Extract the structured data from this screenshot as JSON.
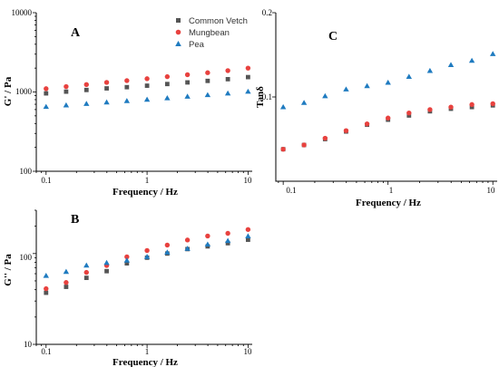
{
  "legend": [
    "Common Vetch",
    "Mungbean",
    "Pea"
  ],
  "colors": {
    "Common Vetch": "#555555",
    "Mungbean": "#e8423f",
    "Pea": "#1f7bc0",
    "axis": "#000000"
  },
  "chart_data": [
    {
      "panel_label": "A",
      "type": "scatter",
      "xscale": "log",
      "yscale": "log",
      "xlabel": "Frequency / Hz",
      "ylabel": "G' / Pa",
      "xlim": [
        0.08,
        11
      ],
      "ylim": [
        100,
        10000
      ],
      "xticks": [
        "0.1",
        "1",
        "10"
      ],
      "yticks": [
        "100",
        "1000",
        "10000"
      ],
      "x": [
        0.1,
        0.158,
        0.251,
        0.398,
        0.631,
        1.0,
        1.585,
        2.512,
        3.981,
        6.31,
        10.0
      ],
      "series": [
        {
          "name": "Common Vetch",
          "marker": "square",
          "values": [
            960,
            1010,
            1060,
            1110,
            1150,
            1200,
            1260,
            1320,
            1380,
            1450,
            1540
          ]
        },
        {
          "name": "Mungbean",
          "marker": "circle",
          "values": [
            1100,
            1170,
            1240,
            1320,
            1390,
            1470,
            1560,
            1650,
            1750,
            1860,
            2000
          ]
        },
        {
          "name": "Pea",
          "marker": "triangle",
          "values": [
            650,
            680,
            710,
            740,
            770,
            800,
            835,
            875,
            915,
            960,
            1010
          ]
        }
      ]
    },
    {
      "panel_label": "B",
      "type": "scatter",
      "xscale": "log",
      "yscale": "log",
      "xlabel": "Frequency / Hz",
      "ylabel": "G'' / Pa",
      "xlim": [
        0.08,
        11
      ],
      "ylim": [
        10,
        300
      ],
      "xticks": [
        "0.1",
        "1",
        "10"
      ],
      "yticks": [
        "10",
        "100"
      ],
      "x": [
        0.1,
        0.158,
        0.251,
        0.398,
        0.631,
        1.0,
        1.585,
        2.512,
        3.981,
        6.31,
        10.0
      ],
      "series": [
        {
          "name": "Common Vetch",
          "marker": "square",
          "values": [
            37,
            43,
            54,
            64,
            78,
            90,
            100,
            112,
            120,
            130,
            142
          ]
        },
        {
          "name": "Mungbean",
          "marker": "circle",
          "values": [
            41,
            48,
            62,
            74,
            92,
            108,
            124,
            141,
            156,
            167,
            184
          ]
        },
        {
          "name": "Pea",
          "marker": "triangle",
          "values": [
            57,
            63,
            74,
            79,
            84,
            92,
            103,
            113,
            126,
            138,
            155
          ]
        }
      ]
    },
    {
      "panel_label": "C",
      "type": "scatter",
      "xscale": "log",
      "yscale": "linear",
      "xlabel": "Frequency / Hz",
      "ylabel": "Tanδ",
      "xlim": [
        0.085,
        11
      ],
      "ylim": [
        0,
        0.2
      ],
      "xticks": [
        "0.1",
        "1",
        "10"
      ],
      "yticks": [
        "0.1",
        "0.2"
      ],
      "x": [
        0.1,
        0.158,
        0.251,
        0.398,
        0.631,
        1.0,
        1.585,
        2.512,
        3.981,
        6.31,
        10.0
      ],
      "series": [
        {
          "name": "Common Vetch",
          "marker": "square",
          "values": [
            0.038,
            0.043,
            0.05,
            0.059,
            0.067,
            0.073,
            0.078,
            0.083,
            0.086,
            0.088,
            0.09
          ]
        },
        {
          "name": "Mungbean",
          "marker": "circle",
          "values": [
            0.038,
            0.043,
            0.051,
            0.06,
            0.068,
            0.075,
            0.081,
            0.085,
            0.088,
            0.091,
            0.092
          ]
        },
        {
          "name": "Pea",
          "marker": "triangle",
          "values": [
            0.088,
            0.093,
            0.101,
            0.109,
            0.113,
            0.117,
            0.124,
            0.131,
            0.138,
            0.143,
            0.151
          ]
        }
      ]
    }
  ]
}
